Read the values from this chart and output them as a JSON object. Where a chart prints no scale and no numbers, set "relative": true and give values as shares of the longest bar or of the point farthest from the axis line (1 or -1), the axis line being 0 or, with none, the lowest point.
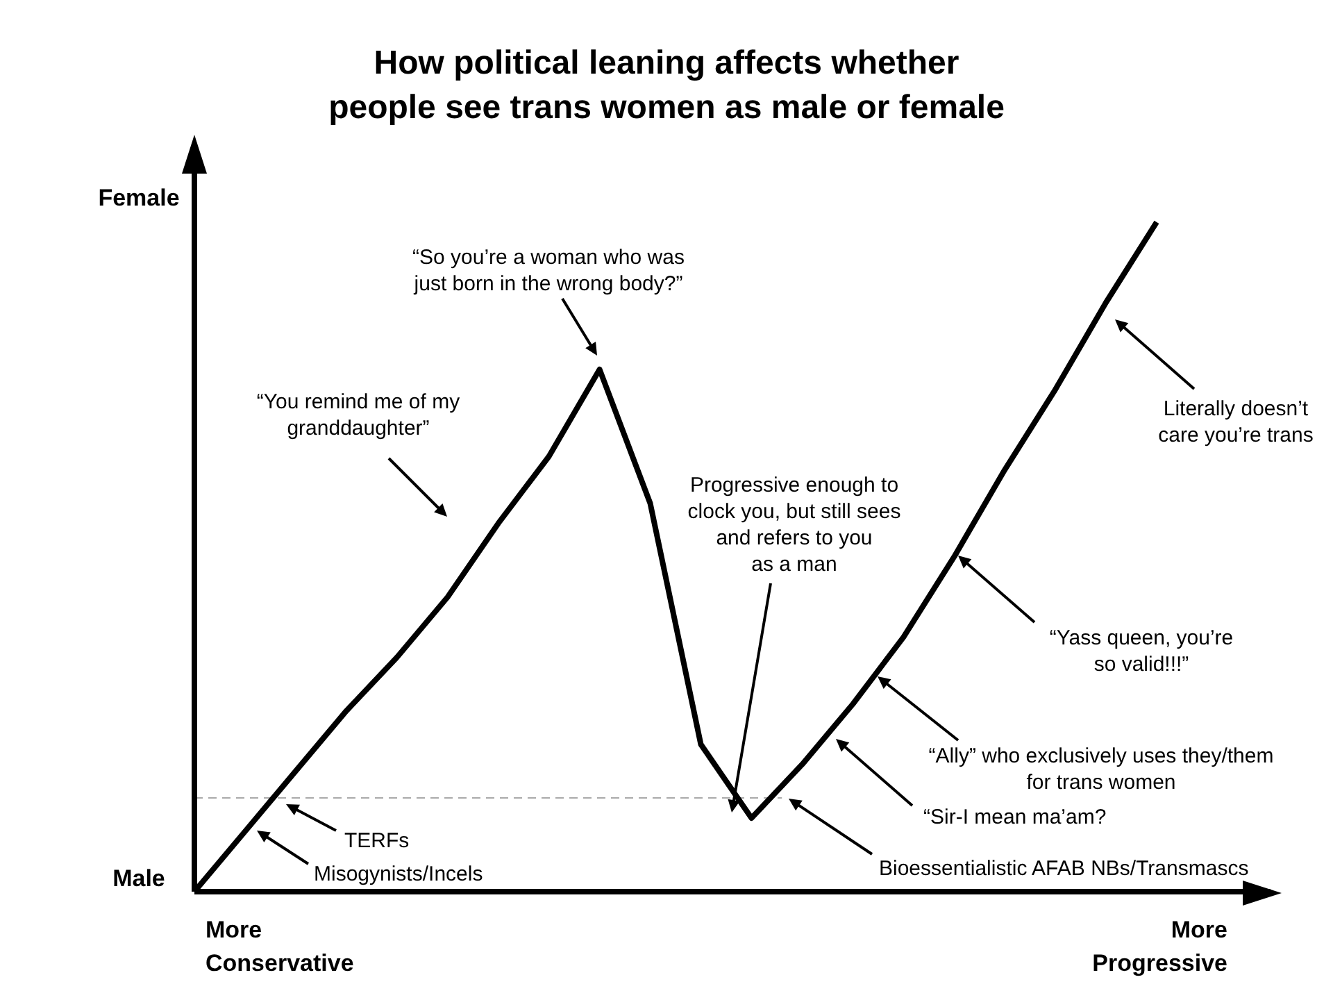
{
  "chart_data": {
    "type": "line",
    "title": "How political leaning affects whether people see trans women as male or female",
    "categories": [
      null,
      null,
      null,
      null,
      null,
      null,
      null,
      null,
      null,
      null,
      null,
      null,
      null,
      null,
      null,
      null,
      null,
      null,
      null,
      null
    ],
    "relative": true,
    "series": [
      {
        "color": "#000000",
        "values": [
          0,
          0.09,
          0.18,
          0.27,
          0.35,
          0.44,
          0.55,
          0.65,
          0.78,
          0.58,
          0.22,
          0.11,
          0.19,
          0.28,
          0.38,
          0.5,
          0.63,
          0.75,
          0.88,
          1.0
        ]
      }
    ],
    "marker": "none",
    "line_style": "solid",
    "grid": false,
    "legend": false,
    "ref_lines": [
      {
        "axis": "y",
        "value": 0.14,
        "color": "#aaaaaa",
        "line_style": "dashed"
      }
    ],
    "annotations": [
      "Female",
      "Male",
      "More Conservative",
      "More Progressive",
      "“So you’re a woman who was just born in the wrong body?”",
      "“You remind me of my granddaughter”",
      "Progressive enough to clock you, but still sees and refers to you as a man",
      "Literally doesn’t care you’re trans",
      "“Yass queen, you’re so valid!!!”",
      "“Ally” who exclusively uses they/them for trans women",
      "“Sir-I mean ma’am?",
      "Bioessentialistic AFAB NBs/Transmascs",
      "TERFs",
      "Misogynists/Incels"
    ]
  }
}
